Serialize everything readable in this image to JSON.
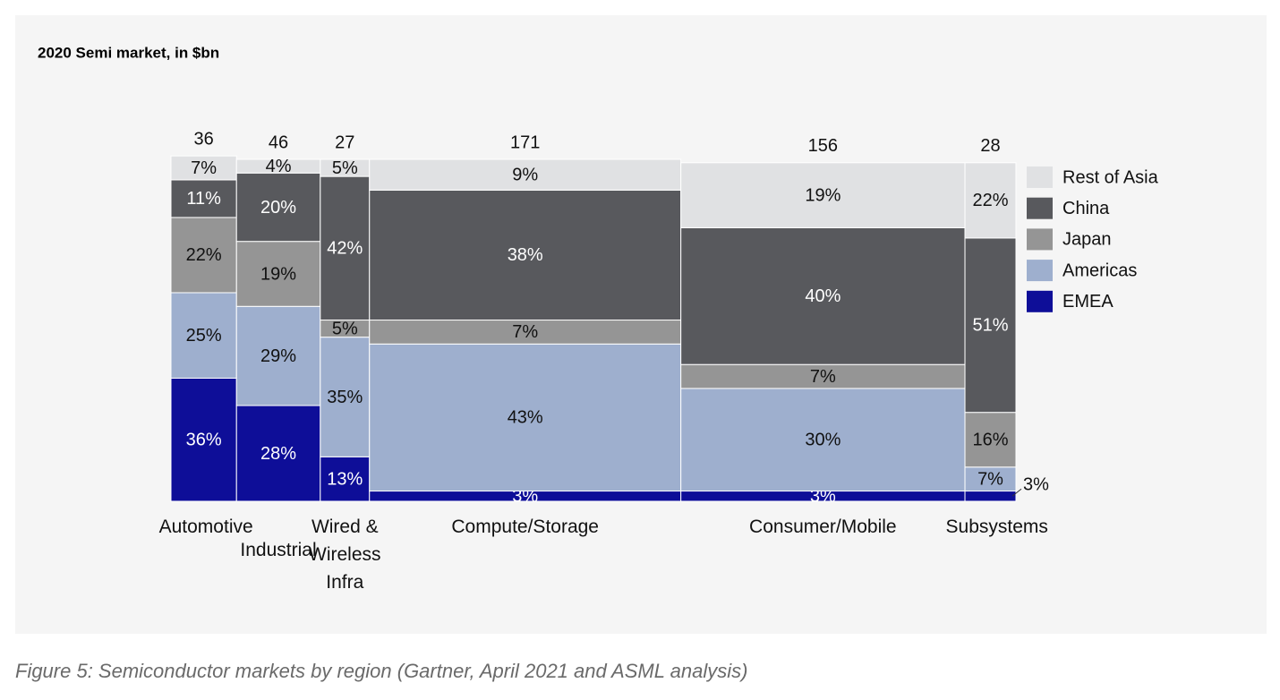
{
  "chart_data": {
    "type": "marimekko",
    "title": "2020 Semi market, in $bn",
    "categories": [
      "Automotive",
      "Industrial",
      "Wired & Wireless Infra",
      "Compute/Storage",
      "Consumer/Mobile",
      "Subsystems"
    ],
    "totals": [
      36,
      46,
      27,
      171,
      156,
      28
    ],
    "series": [
      {
        "name": "EMEA",
        "color": "#0e0e98",
        "values": [
          36,
          28,
          13,
          3,
          3,
          3
        ],
        "value_labels": [
          "36%",
          "28%",
          "13%",
          "3%",
          "3%",
          "3%"
        ]
      },
      {
        "name": "Americas",
        "color": "#9eafce",
        "values": [
          25,
          29,
          35,
          43,
          30,
          7
        ],
        "value_labels": [
          "25%",
          "29%",
          "35%",
          "43%",
          "30%",
          "7%"
        ]
      },
      {
        "name": "Japan",
        "color": "#959595",
        "values": [
          22,
          19,
          5,
          7,
          7,
          16
        ],
        "value_labels": [
          "22%",
          "19%",
          "5%",
          "7%",
          "7%",
          "16%"
        ]
      },
      {
        "name": "China",
        "color": "#58595d",
        "values": [
          11,
          20,
          42,
          38,
          40,
          51
        ],
        "value_labels": [
          "11%",
          "20%",
          "42%",
          "38%",
          "40%",
          "51%"
        ]
      },
      {
        "name": "Rest of Asia",
        "color": "#e0e1e3",
        "values": [
          7,
          4,
          5,
          9,
          19,
          22
        ],
        "value_labels": [
          "7%",
          "4%",
          "5%",
          "9%",
          "19%",
          "22%"
        ]
      }
    ]
  },
  "caption": "Figure 5: Semiconductor markets by region (Gartner, April 2021 and ASML analysis)"
}
